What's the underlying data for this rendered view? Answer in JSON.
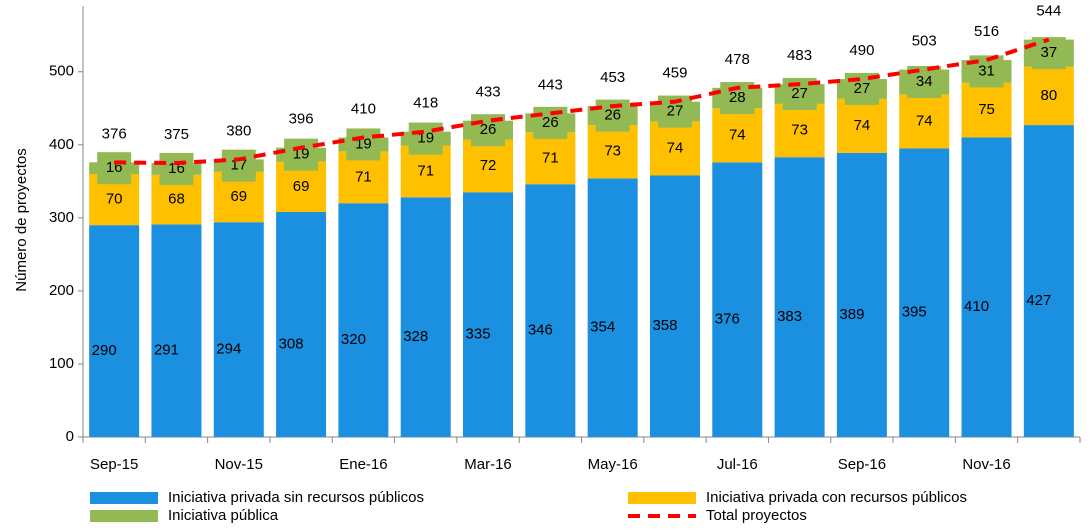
{
  "chart_data": {
    "type": "bar",
    "stacked": true,
    "y_label": "Número de proyectos",
    "categories": [
      "Sep-15",
      null,
      "Nov-15",
      null,
      "Ene-16",
      null,
      "Mar-16",
      null,
      "May-16",
      null,
      "Jul-16",
      null,
      "Sep-16",
      null,
      "Nov-16",
      null
    ],
    "series": [
      {
        "name": "Iniciativa privada sin recursos públicos",
        "color": "#1b8fe0",
        "values": [
          290,
          291,
          294,
          308,
          320,
          328,
          335,
          346,
          354,
          358,
          376,
          383,
          389,
          395,
          410,
          427
        ]
      },
      {
        "name": "Iniciativa privada con recursos públicos",
        "color": "#ffc000",
        "values": [
          70,
          68,
          69,
          69,
          71,
          71,
          72,
          71,
          73,
          74,
          74,
          73,
          74,
          74,
          75,
          80
        ]
      },
      {
        "name": "Iniciativa pública",
        "color": "#92b954",
        "values": [
          16,
          16,
          17,
          19,
          19,
          19,
          26,
          26,
          26,
          27,
          28,
          27,
          27,
          34,
          31,
          37
        ]
      },
      {
        "name": "Total proyectos",
        "color": "#ff0000",
        "type": "line",
        "values": [
          376,
          375,
          380,
          396,
          410,
          418,
          433,
          443,
          453,
          459,
          478,
          483,
          490,
          503,
          516,
          544
        ]
      }
    ],
    "ylim": [
      0,
      590
    ],
    "yticks": [
      0,
      100,
      200,
      300,
      400,
      500
    ]
  }
}
